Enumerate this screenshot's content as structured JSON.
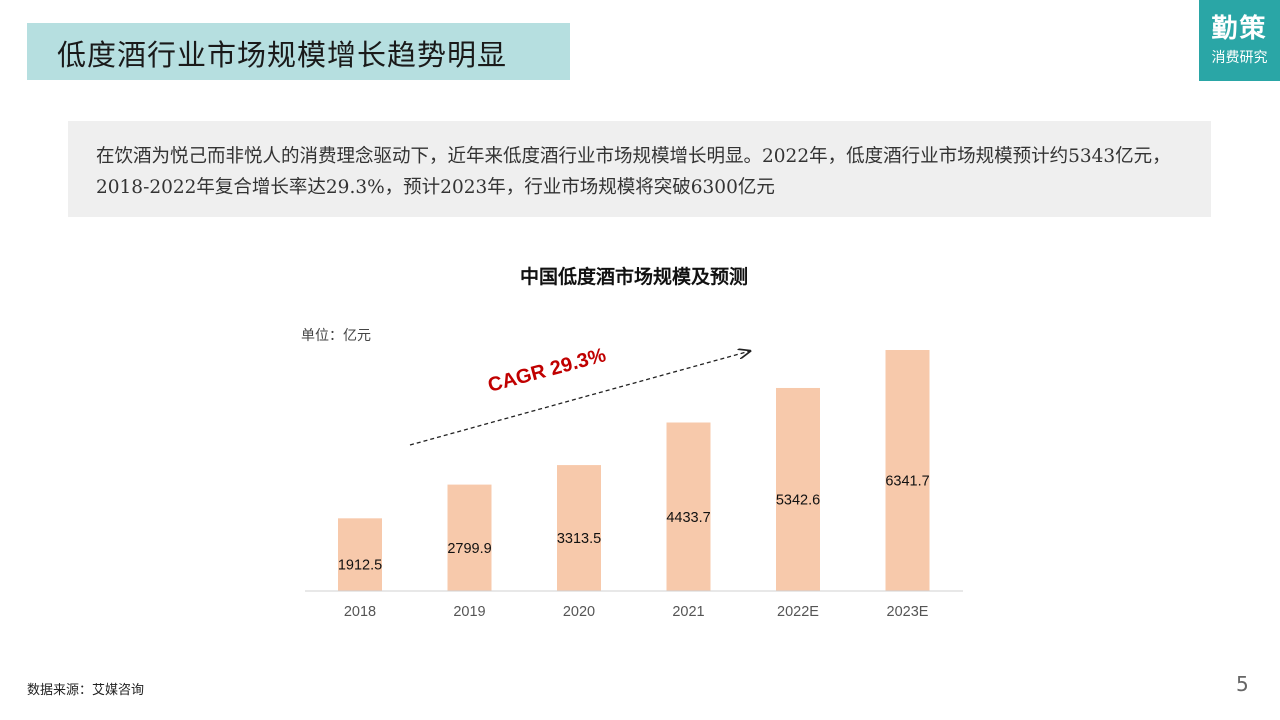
{
  "header": {
    "title": "低度酒行业市场规模增长趋势明显",
    "logo_main": "勤策",
    "logo_sub": "消费研究"
  },
  "intro": {
    "text": "在饮酒为悦己而非悦人的消费理念驱动下，近年来低度酒行业市场规模增长明显。2022年，低度酒行业市场规模预计约5343亿元，2018-2022年复合增长率达29.3%，预计2023年，行业市场规模将突破6300亿元"
  },
  "chart_data": {
    "type": "bar",
    "title": "中国低度酒市场规模及预测",
    "unit": "单位：亿元",
    "categories": [
      "2018",
      "2019",
      "2020",
      "2021",
      "2022E",
      "2023E"
    ],
    "values": [
      1912.5,
      2799.9,
      3313.5,
      4433.7,
      5342.6,
      6341.7
    ],
    "value_labels": [
      "1912.5",
      "2799.9",
      "3313.5",
      "4433.7",
      "5342.6",
      "6341.7"
    ],
    "ylim": [
      0,
      6341.7
    ],
    "bar_color": "#f7c9ab",
    "annotation": "CAGR  29.3%",
    "annotation_color": "#c00000",
    "grid": false,
    "legend": "none"
  },
  "footer": {
    "source": "数据来源：艾媒咨询",
    "page_number": "5"
  }
}
